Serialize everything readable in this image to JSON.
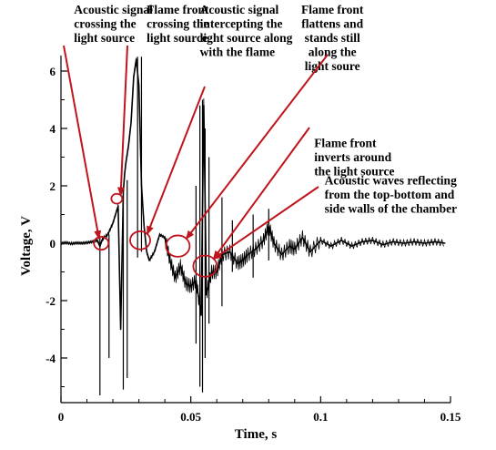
{
  "chart_data": {
    "type": "line",
    "xlabel": "Time, s",
    "ylabel": "Voltage, V",
    "xlim": [
      0,
      0.15
    ],
    "ylim": [
      -5.3,
      6.5
    ],
    "x_ticks": [
      0,
      0.05,
      0.1,
      0.15
    ],
    "x_tick_labels": [
      "0",
      "0.05",
      "0.1",
      "0.15"
    ],
    "y_ticks": [
      -4,
      -2,
      0,
      2,
      4,
      6
    ],
    "y_tick_labels": [
      "-4",
      "-2",
      "0",
      "2",
      "4",
      "6"
    ],
    "grid": false,
    "colors": {
      "signal": "#000000",
      "annotation": "#c0141c"
    },
    "series": [
      {
        "x": [
          0,
          0.002,
          0.004,
          0.006,
          0.008,
          0.01,
          0.012,
          0.014,
          0.015,
          0.016,
          0.018,
          0.02,
          0.022,
          0.023,
          0.024,
          0.0245,
          0.025,
          0.026,
          0.027,
          0.028,
          0.029,
          0.03,
          0.031,
          0.032,
          0.033,
          0.034,
          0.036,
          0.038,
          0.04,
          0.042,
          0.044,
          0.046,
          0.048,
          0.05,
          0.052,
          0.054,
          0.055,
          0.056,
          0.058,
          0.06,
          0.062,
          0.065,
          0.068,
          0.07,
          0.072,
          0.075,
          0.078,
          0.08,
          0.082,
          0.085,
          0.088,
          0.09,
          0.093,
          0.096,
          0.1,
          0.104,
          0.108,
          0.112,
          0.116,
          0.12,
          0.124,
          0.128,
          0.132,
          0.136,
          0.14,
          0.144,
          0.148
        ],
        "values": [
          0,
          0.02,
          -0.02,
          0.01,
          0.0,
          0.02,
          0.05,
          0.1,
          -0.1,
          0.15,
          0.3,
          0.7,
          1.3,
          -3.0,
          1.8,
          2.4,
          2.8,
          3.4,
          4.2,
          5.8,
          6.4,
          5.5,
          2.0,
          0.6,
          -0.3,
          -0.6,
          -0.3,
          0.3,
          0.2,
          -0.6,
          -1.2,
          -0.8,
          -1.4,
          -1.5,
          -1.3,
          -2.5,
          4.8,
          -1.8,
          -1.0,
          -1.0,
          -0.4,
          -0.3,
          -0.7,
          -0.6,
          -0.4,
          -0.2,
          0.1,
          0.6,
          0.0,
          -0.4,
          -0.1,
          -0.2,
          0.2,
          -0.3,
          0.1,
          -0.1,
          0.1,
          -0.1,
          0.05,
          0.1,
          -0.05,
          0.05,
          0.0,
          0.05,
          0.0,
          0.05,
          0.0
        ]
      }
    ],
    "spikes": [
      {
        "x": 0.015,
        "min": -5.3,
        "max": 0.2
      },
      {
        "x": 0.0185,
        "min": -4.0,
        "max": 0.3
      },
      {
        "x": 0.024,
        "min": -5.1,
        "max": 1.6
      },
      {
        "x": 0.0255,
        "min": -4.7,
        "max": 2.2
      },
      {
        "x": 0.0295,
        "min": -0.5,
        "max": 6.5
      },
      {
        "x": 0.031,
        "min": -0.3,
        "max": 6.5
      },
      {
        "x": 0.052,
        "min": -3.5,
        "max": 2.0
      },
      {
        "x": 0.0535,
        "min": -5.0,
        "max": 4.8
      },
      {
        "x": 0.0545,
        "min": -5.2,
        "max": 5.0
      },
      {
        "x": 0.0555,
        "min": -4.0,
        "max": 4.0
      },
      {
        "x": 0.057,
        "min": -2.8,
        "max": 3.0
      },
      {
        "x": 0.062,
        "min": -2.2,
        "max": 1.6
      },
      {
        "x": 0.066,
        "min": -1.0,
        "max": 0.8
      },
      {
        "x": 0.074,
        "min": -1.2,
        "max": 1.0
      },
      {
        "x": 0.08,
        "min": -0.6,
        "max": 1.2
      }
    ],
    "annotations": [
      {
        "text": [
          "Acoustic signal",
          "crossing the",
          "light source"
        ],
        "text_xy": [
          0.005,
          8.0
        ],
        "circle": [
          0.0155,
          0.0
        ]
      },
      {
        "text": [
          "Flame front",
          "crossing the",
          "light source"
        ],
        "text_xy": [
          0.033,
          8.0
        ],
        "circle": [
          0.0215,
          1.55
        ]
      },
      {
        "text": [
          "Acoustic signal",
          "intercepting the",
          "light source along",
          "with the flame"
        ],
        "text_xy": [
          0.0535,
          8.0
        ],
        "circle": [
          0.0305,
          0.1
        ]
      },
      {
        "text": [
          "Flame front",
          "flattens and",
          "stands still",
          "along the",
          "light soure"
        ],
        "text_xy": [
          0.1045,
          8.0
        ],
        "circle": [
          0.045,
          -0.1
        ]
      },
      {
        "text": [
          "Flame front",
          "inverts around",
          "the light source"
        ],
        "text_xy": [
          0.0975,
          3.35
        ],
        "circle": [
          0.0555,
          -0.8
        ]
      },
      {
        "text": [
          "Acoustic waves reflecting",
          "from the top-bottom and",
          "side walls of the chamber"
        ],
        "text_xy": [
          0.1015,
          2.05
        ],
        "circle": [
          0.0555,
          -0.8
        ]
      }
    ]
  }
}
